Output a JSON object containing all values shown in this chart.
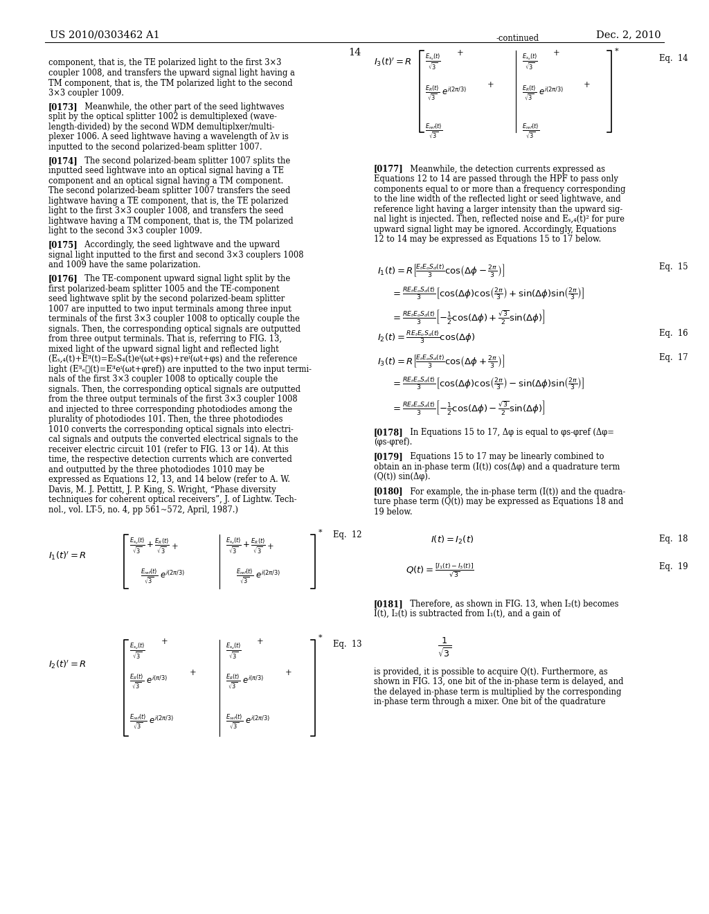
{
  "page_number": "14",
  "patent_number": "US 2010/0303462 A1",
  "patent_date": "Dec. 2, 2010",
  "bg_color": "#ffffff",
  "text_color": "#000000",
  "fs_body": 8.3,
  "fs_header": 10.5
}
